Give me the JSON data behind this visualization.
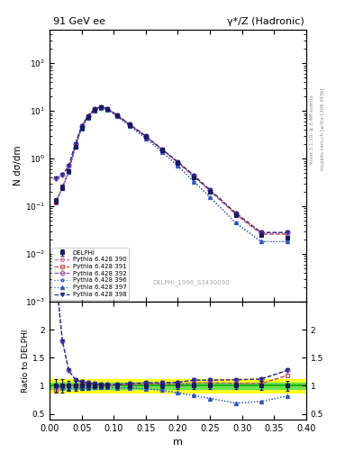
{
  "title_left": "91 GeV ee",
  "title_right": "γ*/Z (Hadronic)",
  "ylabel_main": "N dσ/dm",
  "ylabel_ratio": "Ratio to DELPHI",
  "xlabel": "m",
  "right_label": "Rivet 3.1.10, ≥ 3.4M events",
  "right_label2": "mcplots.cern.ch [arXiv:1306.3436]",
  "watermark": "DELPHI_1996_S3430090",
  "x_data": [
    0.01,
    0.02,
    0.03,
    0.04,
    0.05,
    0.06,
    0.07,
    0.08,
    0.09,
    0.105,
    0.125,
    0.15,
    0.175,
    0.2,
    0.225,
    0.25,
    0.29,
    0.33,
    0.37
  ],
  "delphi_y": [
    0.13,
    0.25,
    0.55,
    1.8,
    4.5,
    7.5,
    10.5,
    12.0,
    11.0,
    8.0,
    5.0,
    2.8,
    1.5,
    0.8,
    0.4,
    0.2,
    0.065,
    0.025,
    0.022
  ],
  "delphi_yerr": [
    0.015,
    0.03,
    0.05,
    0.15,
    0.3,
    0.4,
    0.4,
    0.5,
    0.4,
    0.3,
    0.2,
    0.12,
    0.07,
    0.04,
    0.02,
    0.012,
    0.004,
    0.002,
    0.002
  ],
  "p390_y": [
    0.12,
    0.25,
    0.55,
    1.8,
    4.6,
    7.7,
    10.7,
    12.1,
    11.1,
    8.1,
    5.1,
    2.9,
    1.55,
    0.82,
    0.42,
    0.21,
    0.068,
    0.026,
    0.026
  ],
  "p391_y": [
    0.12,
    0.25,
    0.55,
    1.8,
    4.6,
    7.7,
    10.7,
    12.1,
    11.1,
    8.1,
    5.1,
    2.9,
    1.55,
    0.82,
    0.42,
    0.21,
    0.068,
    0.026,
    0.026
  ],
  "p392_y": [
    0.38,
    0.45,
    0.7,
    2.0,
    4.8,
    7.9,
    10.9,
    12.2,
    11.2,
    8.2,
    5.2,
    2.95,
    1.58,
    0.85,
    0.44,
    0.22,
    0.072,
    0.028,
    0.028
  ],
  "p396_y": [
    0.13,
    0.24,
    0.52,
    1.75,
    4.3,
    7.2,
    10.2,
    11.7,
    10.7,
    7.7,
    4.8,
    2.65,
    1.38,
    0.7,
    0.33,
    0.155,
    0.045,
    0.018,
    0.018
  ],
  "p397_y": [
    0.13,
    0.24,
    0.52,
    1.75,
    4.3,
    7.2,
    10.2,
    11.7,
    10.7,
    7.7,
    4.8,
    2.65,
    1.38,
    0.7,
    0.33,
    0.155,
    0.045,
    0.018,
    0.018
  ],
  "p398_y": [
    0.38,
    0.45,
    0.7,
    2.0,
    4.8,
    7.9,
    10.9,
    12.2,
    11.2,
    8.2,
    5.2,
    2.95,
    1.58,
    0.85,
    0.44,
    0.22,
    0.072,
    0.028,
    0.028
  ],
  "c390": "#cc77aa",
  "c391": "#cc5555",
  "c392": "#9955bb",
  "c396": "#4466cc",
  "c397": "#3355bb",
  "c398": "#2b2b8b",
  "c_delphi": "#1a1a5e",
  "green_band": 0.05,
  "yellow_band": 0.12
}
